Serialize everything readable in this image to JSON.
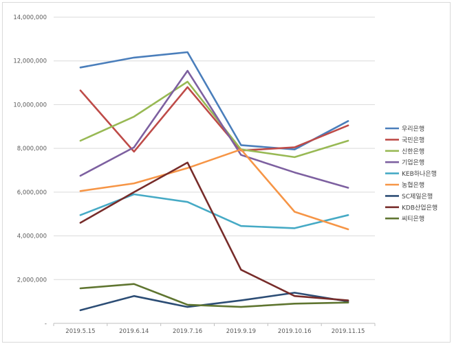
{
  "chart_data": {
    "type": "line",
    "categories": [
      "2019.5.15",
      "2019.6.14",
      "2019.7.16",
      "2019.9.19",
      "2019.10.16",
      "2019.11.15"
    ],
    "ylim": [
      0,
      14000000
    ],
    "yticks": [
      0,
      2000000,
      4000000,
      6000000,
      8000000,
      10000000,
      12000000,
      14000000
    ],
    "ytick_labels": [
      "-",
      "2,000,000",
      "4,000,000",
      "6,000,000",
      "8,000,000",
      "10,000,000",
      "12,000,000",
      "14,000,000"
    ],
    "grid": true,
    "legend_position": "right",
    "series": [
      {
        "name": "우리은행",
        "color": "#4a7ebb",
        "values": [
          11700000,
          12150000,
          12400000,
          8150000,
          7950000,
          9250000
        ]
      },
      {
        "name": "국민은행",
        "color": "#be4b48",
        "values": [
          10650000,
          7850000,
          10800000,
          7900000,
          8050000,
          9050000
        ]
      },
      {
        "name": "신한은행",
        "color": "#98b954",
        "values": [
          8350000,
          9450000,
          11050000,
          7950000,
          7600000,
          8350000
        ]
      },
      {
        "name": "기업은행",
        "color": "#7d60a0",
        "values": [
          6750000,
          8050000,
          11550000,
          7700000,
          6900000,
          6200000
        ]
      },
      {
        "name": "KEB하나은행",
        "color": "#46aac5",
        "values": [
          4950000,
          5900000,
          5550000,
          4450000,
          4350000,
          4950000
        ]
      },
      {
        "name": "농협은행",
        "color": "#f69546",
        "values": [
          6050000,
          6400000,
          7100000,
          7950000,
          5100000,
          4300000
        ]
      },
      {
        "name": "SC제일은행",
        "color": "#2c4d75",
        "values": [
          600000,
          1250000,
          750000,
          1050000,
          1400000,
          1000000
        ]
      },
      {
        "name": "KDB산업은행",
        "color": "#772c2a",
        "values": [
          4600000,
          6000000,
          7350000,
          2450000,
          1250000,
          1050000
        ]
      },
      {
        "name": "씨티은행",
        "color": "#5f7530",
        "values": [
          1600000,
          1800000,
          850000,
          750000,
          900000,
          950000
        ]
      }
    ]
  }
}
